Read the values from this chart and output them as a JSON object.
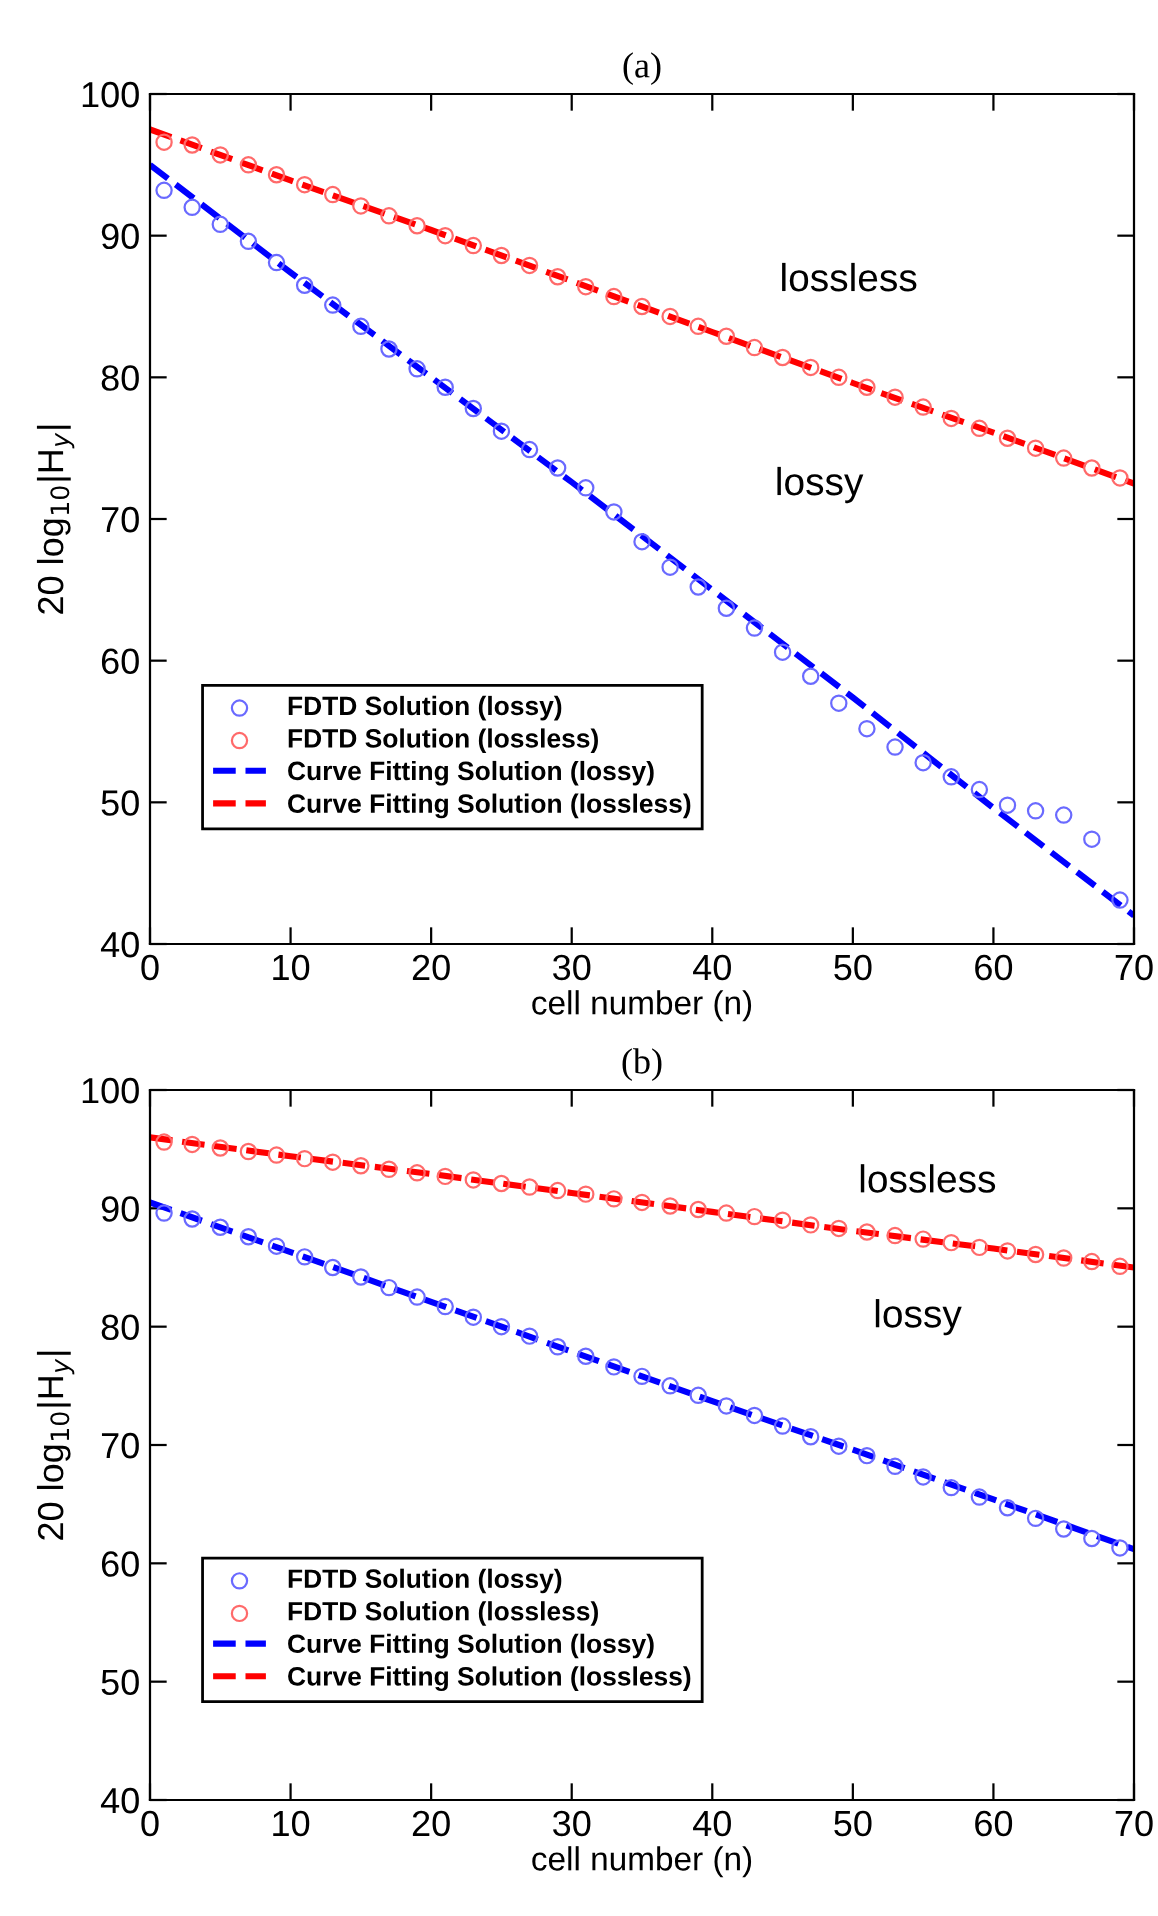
{
  "chart_data": [
    {
      "type": "scatter",
      "title": "(a)",
      "xlabel": "cell number (n)",
      "ylabel": "20 log$_{10}$|H$_{y}$|",
      "xlim": [
        0,
        70
      ],
      "ylim": [
        40,
        100
      ],
      "xticks": [
        0,
        10,
        20,
        30,
        40,
        50,
        60,
        70
      ],
      "yticks": [
        40,
        50,
        60,
        70,
        80,
        90,
        100
      ],
      "grid": false,
      "legend": "bottom left",
      "annotations": [
        "lossless",
        "lossy"
      ],
      "series": [
        {
          "name": "FDTD Solution (lossy)",
          "marker": "circle",
          "color": "#6a6aff",
          "x": [
            1,
            3,
            5,
            7,
            9,
            11,
            13,
            15,
            17,
            19,
            21,
            23,
            25,
            27,
            29,
            31,
            33,
            35,
            37,
            39,
            41,
            43,
            45,
            47,
            49,
            51,
            53,
            55,
            57,
            59,
            61,
            63,
            65,
            67,
            69
          ],
          "values": [
            93.2,
            92.0,
            90.8,
            89.6,
            88.1,
            86.5,
            85.1,
            83.6,
            82.0,
            80.6,
            79.3,
            77.8,
            76.2,
            74.9,
            73.6,
            72.2,
            70.5,
            68.4,
            66.6,
            65.2,
            63.7,
            62.3,
            60.6,
            58.9,
            57.0,
            55.2,
            53.9,
            52.8,
            51.8,
            50.9,
            49.8,
            49.4,
            49.1,
            47.4,
            43.1
          ]
        },
        {
          "name": "FDTD Solution (lossless)",
          "marker": "circle",
          "color": "#ff6a6a",
          "x": [
            1,
            3,
            5,
            7,
            9,
            11,
            13,
            15,
            17,
            19,
            21,
            23,
            25,
            27,
            29,
            31,
            33,
            35,
            37,
            39,
            41,
            43,
            45,
            47,
            49,
            51,
            53,
            55,
            57,
            59,
            61,
            63,
            65,
            67,
            69
          ],
          "values": [
            96.6,
            96.4,
            95.7,
            95.0,
            94.3,
            93.6,
            92.9,
            92.1,
            91.4,
            90.7,
            90.0,
            89.3,
            88.6,
            87.9,
            87.1,
            86.4,
            85.7,
            85.0,
            84.3,
            83.6,
            82.9,
            82.1,
            81.4,
            80.7,
            80.0,
            79.3,
            78.6,
            77.9,
            77.1,
            76.4,
            75.7,
            75.0,
            74.3,
            73.6,
            72.9
          ]
        },
        {
          "name": "Curve Fitting Solution (lossy)",
          "type": "line",
          "line_style": "dashed",
          "color": "#0000ff",
          "x": [
            0,
            10,
            20,
            30,
            40,
            50,
            60,
            70
          ],
          "values": [
            95.0,
            87.4,
            80.0,
            72.6,
            65.0,
            57.4,
            49.6,
            42.0
          ]
        },
        {
          "name": "Curve Fitting Solution (lossless)",
          "type": "line",
          "line_style": "dashed",
          "color": "#ff0000",
          "x": [
            0,
            10,
            20,
            30,
            40,
            50,
            60,
            70
          ],
          "values": [
            97.5,
            93.9,
            90.4,
            86.8,
            83.2,
            79.6,
            76.1,
            72.5
          ]
        }
      ]
    },
    {
      "type": "scatter",
      "title": "(b)",
      "xlabel": "cell number (n)",
      "ylabel": "20 log$_{10}$|H$_{y}$|",
      "xlim": [
        0,
        70
      ],
      "ylim": [
        40,
        100
      ],
      "xticks": [
        0,
        10,
        20,
        30,
        40,
        50,
        60,
        70
      ],
      "yticks": [
        40,
        50,
        60,
        70,
        80,
        90,
        100
      ],
      "grid": false,
      "legend": "bottom left",
      "annotations": [
        "lossless",
        "lossy"
      ],
      "series": [
        {
          "name": "FDTD Solution (lossy)",
          "marker": "circle",
          "color": "#6a6aff",
          "x": [
            1,
            3,
            5,
            7,
            9,
            11,
            13,
            15,
            17,
            19,
            21,
            23,
            25,
            27,
            29,
            31,
            33,
            35,
            37,
            39,
            41,
            43,
            45,
            47,
            49,
            51,
            53,
            55,
            57,
            59,
            61,
            63,
            65,
            67,
            69
          ],
          "values": [
            89.6,
            89.1,
            88.4,
            87.6,
            86.8,
            85.9,
            85.0,
            84.2,
            83.3,
            82.5,
            81.7,
            80.8,
            80.0,
            79.2,
            78.3,
            77.5,
            76.6,
            75.8,
            75.0,
            74.2,
            73.3,
            72.5,
            71.6,
            70.7,
            69.9,
            69.1,
            68.2,
            67.3,
            66.4,
            65.6,
            64.7,
            63.8,
            62.9,
            62.1,
            61.3
          ]
        },
        {
          "name": "FDTD Solution (lossless)",
          "marker": "circle",
          "color": "#ff6a6a",
          "x": [
            1,
            3,
            5,
            7,
            9,
            11,
            13,
            15,
            17,
            19,
            21,
            23,
            25,
            27,
            29,
            31,
            33,
            35,
            37,
            39,
            41,
            43,
            45,
            47,
            49,
            51,
            53,
            55,
            57,
            59,
            61,
            63,
            65,
            67,
            69
          ],
          "values": [
            95.6,
            95.4,
            95.1,
            94.8,
            94.5,
            94.2,
            93.9,
            93.6,
            93.3,
            93.0,
            92.7,
            92.4,
            92.1,
            91.8,
            91.5,
            91.2,
            90.8,
            90.5,
            90.2,
            89.9,
            89.6,
            89.3,
            89.0,
            88.6,
            88.3,
            88.0,
            87.7,
            87.4,
            87.1,
            86.7,
            86.4,
            86.1,
            85.8,
            85.5,
            85.1
          ]
        },
        {
          "name": "Curve Fitting Solution (lossy)",
          "type": "line",
          "line_style": "dashed",
          "color": "#0000ff",
          "x": [
            0,
            10,
            20,
            30,
            40,
            50,
            60,
            70
          ],
          "values": [
            90.5,
            86.3,
            82.1,
            77.9,
            73.7,
            69.6,
            65.4,
            61.2
          ]
        },
        {
          "name": "Curve Fitting Solution (lossless)",
          "type": "line",
          "line_style": "dashed",
          "color": "#ff0000",
          "x": [
            0,
            10,
            20,
            30,
            40,
            50,
            60,
            70
          ],
          "values": [
            96.0,
            94.4,
            92.9,
            91.3,
            89.7,
            88.1,
            86.6,
            85.0
          ]
        }
      ]
    }
  ]
}
